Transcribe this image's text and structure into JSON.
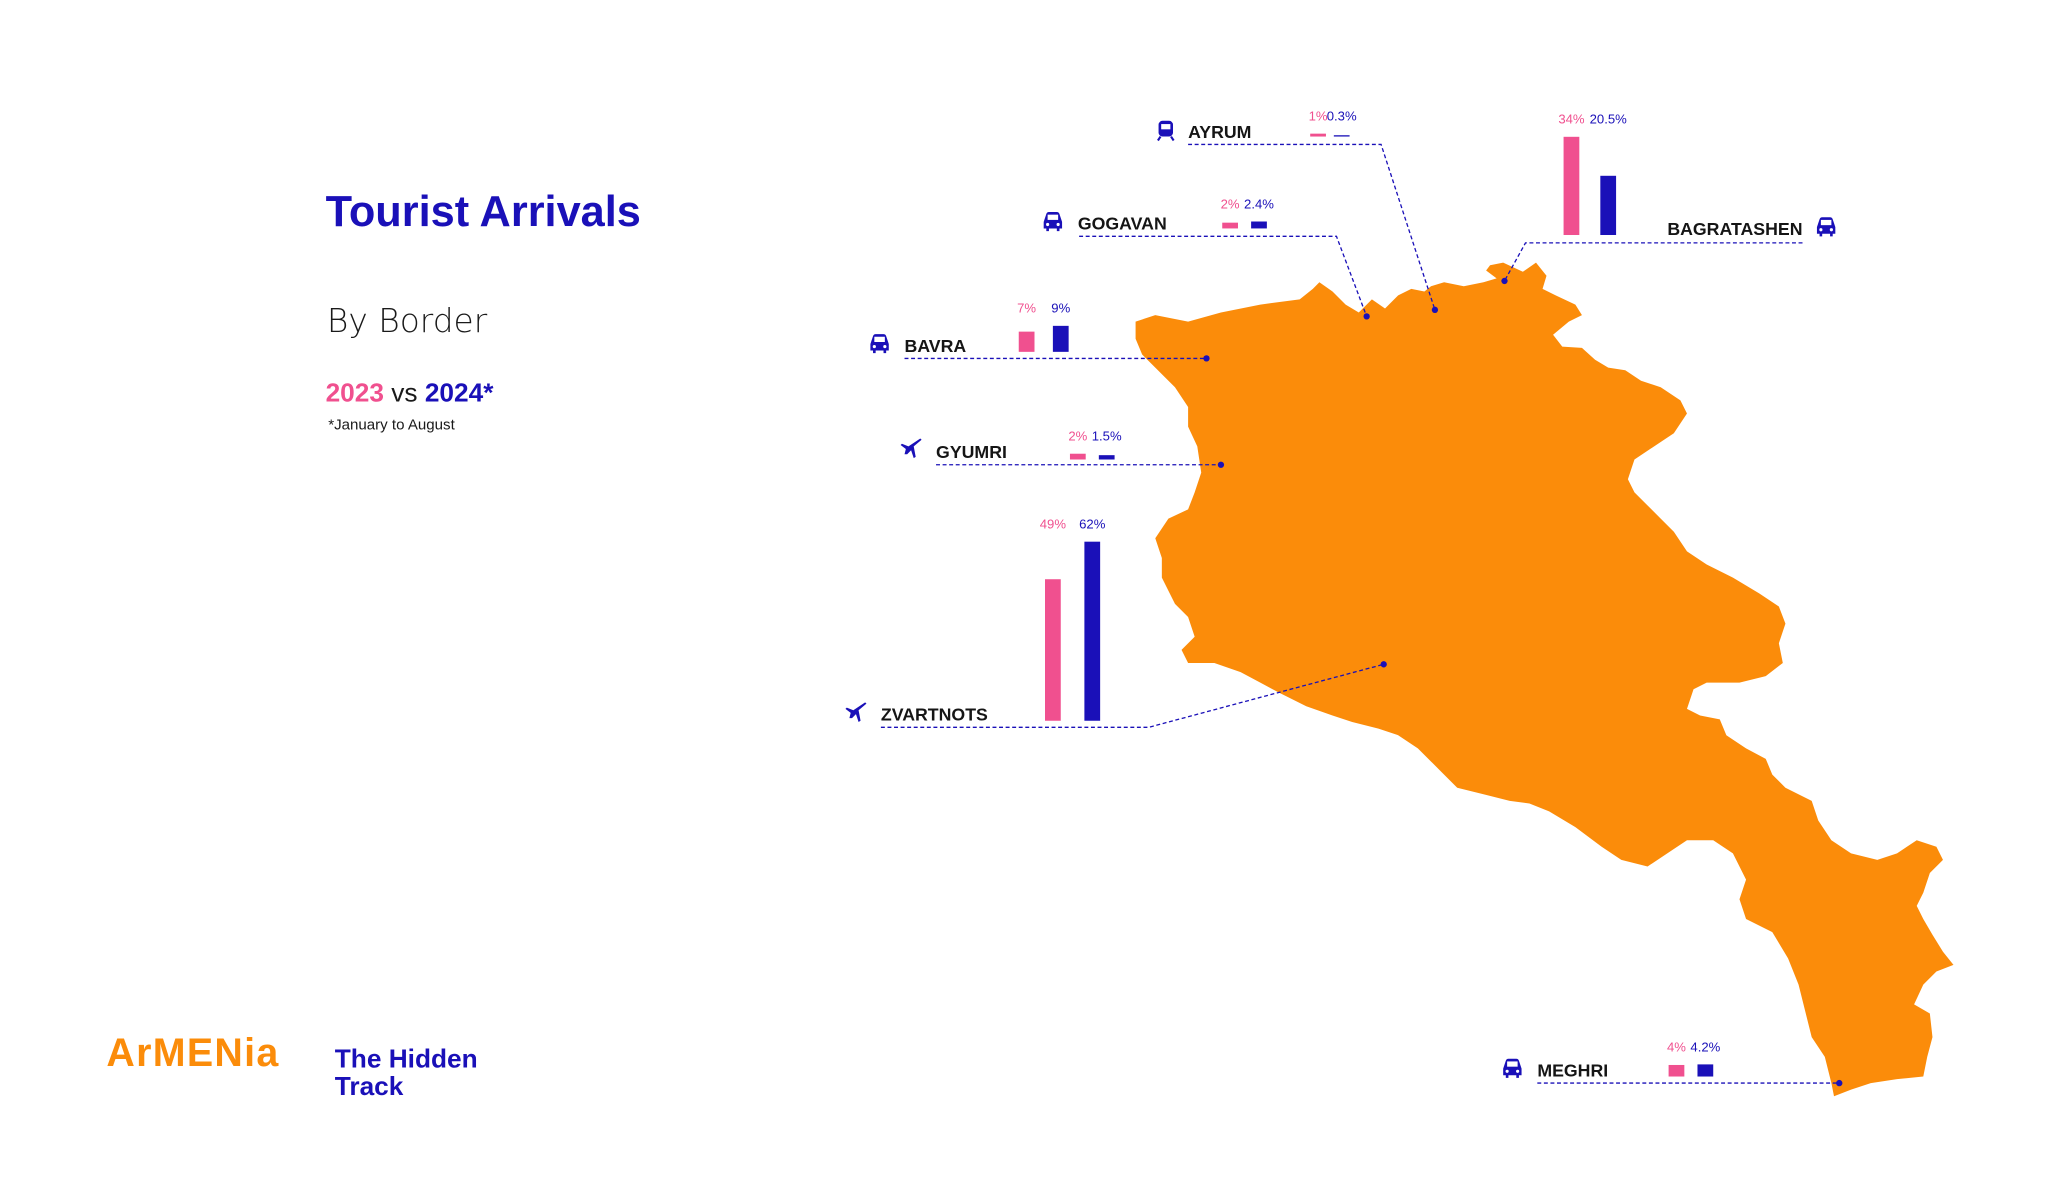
{
  "header": {
    "title": "Tourist Arrivals",
    "subtitle": "By Border",
    "year_a": "2023",
    "vs": "vs",
    "year_b": "2024*",
    "footnote": "*January to August"
  },
  "logo": {
    "brand": "ArMENia",
    "tagline_line1": "The Hidden",
    "tagline_line2": "Track"
  },
  "colors": {
    "series_2023": "#f0508f",
    "series_2024": "#1a10b8",
    "map_fill": "#fb8c0a",
    "title": "#1a10b8"
  },
  "chart_data": {
    "type": "bar",
    "unit": "%",
    "series": [
      {
        "name": "2023",
        "color": "#f0508f"
      },
      {
        "name": "2024*",
        "color": "#1a10b8"
      }
    ],
    "borders": [
      {
        "name": "AYRUM",
        "icon": "train-icon",
        "v2023": 1,
        "v2024": 0.3,
        "label_2023": "1%",
        "label_2024": "0.3%"
      },
      {
        "name": "GOGAVAN",
        "icon": "car-icon",
        "v2023": 2,
        "v2024": 2.4,
        "label_2023": "2%",
        "label_2024": "2.4%"
      },
      {
        "name": "BAGRATASHEN",
        "icon": "car-icon",
        "v2023": 34,
        "v2024": 20.5,
        "label_2023": "34%",
        "label_2024": "20.5%"
      },
      {
        "name": "BAVRA",
        "icon": "car-icon",
        "v2023": 7,
        "v2024": 9,
        "label_2023": "7%",
        "label_2024": "9%"
      },
      {
        "name": "GYUMRI",
        "icon": "plane-icon",
        "v2023": 2,
        "v2024": 1.5,
        "label_2023": "2%",
        "label_2024": "1.5%"
      },
      {
        "name": "ZVARTNOTS",
        "icon": "plane-icon",
        "v2023": 49,
        "v2024": 62,
        "label_2023": "49%",
        "label_2024": "62%"
      },
      {
        "name": "MEGHRI",
        "icon": "car-icon",
        "v2023": 4,
        "v2024": 4.2,
        "label_2023": "4%",
        "label_2024": "4.2%"
      }
    ]
  }
}
